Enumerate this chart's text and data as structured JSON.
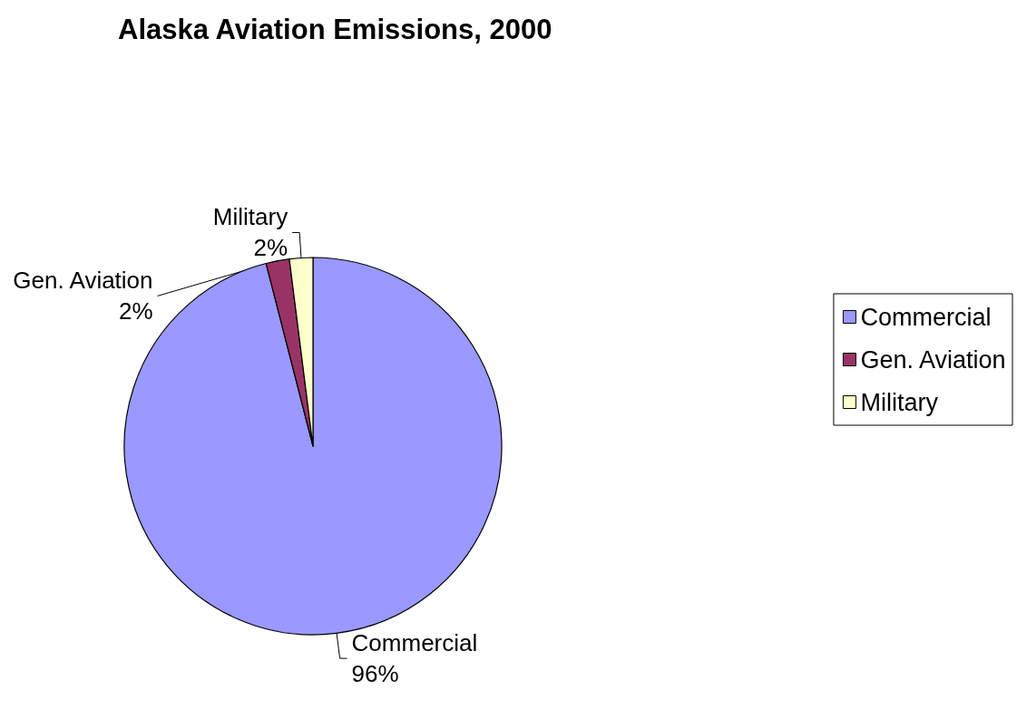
{
  "chart_data": {
    "type": "pie",
    "title": "Alaska Aviation Emissions, 2000",
    "categories": [
      "Commercial",
      "Gen. Aviation",
      "Military"
    ],
    "values": [
      96,
      2,
      2
    ],
    "colors": [
      "#9999ff",
      "#993366",
      "#ffffcc"
    ],
    "value_labels": [
      "96%",
      "2%",
      "2%"
    ],
    "legend": "right"
  }
}
